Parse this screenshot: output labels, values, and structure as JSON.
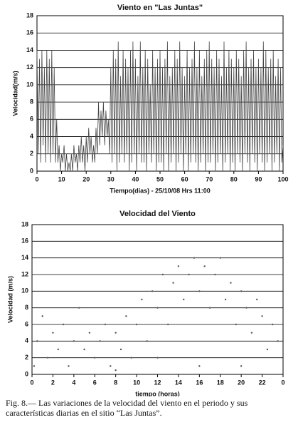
{
  "chart_data": [
    {
      "type": "line",
      "title": "Viento en \"Las Juntas\"",
      "xlabel": "Tiempo(dias) - 25/10/08 Hrs 11:00",
      "ylabel": "Velocidad(m/s)",
      "color": "#444444",
      "grid": true,
      "xlim": [
        0,
        100
      ],
      "ylim": [
        0,
        18
      ],
      "xticks": [
        0,
        10,
        20,
        30,
        40,
        50,
        60,
        70,
        80,
        90,
        100
      ],
      "yticks": [
        0,
        2,
        4,
        6,
        8,
        10,
        12,
        14,
        16,
        18
      ],
      "x": [
        0,
        0.5,
        1,
        1.5,
        2,
        2.5,
        3,
        3.5,
        4,
        4.5,
        5,
        5.5,
        6,
        6.5,
        7,
        7.5,
        8,
        8.5,
        9,
        9.5,
        10,
        10.5,
        11,
        11.5,
        12,
        12.5,
        13,
        13.5,
        14,
        14.5,
        15,
        15.5,
        16,
        16.5,
        17,
        17.5,
        18,
        18.5,
        19,
        19.5,
        20,
        20.5,
        21,
        21.5,
        22,
        22.5,
        23,
        23.5,
        24,
        24.5,
        25,
        25.5,
        26,
        26.5,
        27,
        27.5,
        28,
        28.5,
        29,
        29.5,
        30,
        30.5,
        31,
        31.5,
        32,
        32.5,
        33,
        33.5,
        34,
        34.5,
        35,
        35.5,
        36,
        36.5,
        37,
        37.5,
        38,
        38.5,
        39,
        39.5,
        40,
        40.5,
        41,
        41.5,
        42,
        42.5,
        43,
        43.5,
        44,
        44.5,
        45,
        45.5,
        46,
        46.5,
        47,
        47.5,
        48,
        48.5,
        49,
        49.5,
        50,
        50.5,
        51,
        51.5,
        52,
        52.5,
        53,
        53.5,
        54,
        54.5,
        55,
        55.5,
        56,
        56.5,
        57,
        57.5,
        58,
        58.5,
        59,
        59.5,
        60,
        60.5,
        61,
        61.5,
        62,
        62.5,
        63,
        63.5,
        64,
        64.5,
        65,
        65.5,
        66,
        66.5,
        67,
        67.5,
        68,
        68.5,
        69,
        69.5,
        70,
        70.5,
        71,
        71.5,
        72,
        72.5,
        73,
        73.5,
        74,
        74.5,
        75,
        75.5,
        76,
        76.5,
        77,
        77.5,
        78,
        78.5,
        79,
        79.5,
        80,
        80.5,
        81,
        81.5,
        82,
        82.5,
        83,
        83.5,
        84,
        84.5,
        85,
        85.5,
        86,
        86.5,
        87,
        87.5,
        88,
        88.5,
        89,
        89.5,
        90,
        90.5,
        91,
        91.5,
        92,
        92.5,
        93,
        93.5,
        94,
        94.5,
        95,
        95.5,
        96,
        96.5,
        97,
        97.5,
        98,
        98.5,
        99,
        99.5,
        100
      ],
      "values": [
        14,
        2,
        13,
        1,
        14,
        3,
        12,
        1,
        14,
        2,
        13,
        1,
        14,
        2,
        12,
        1,
        6,
        1,
        3,
        0,
        2,
        1,
        3,
        0,
        2,
        0,
        1,
        0,
        2,
        0,
        3,
        1,
        2,
        0,
        3,
        1,
        4,
        1,
        3,
        0,
        4,
        1,
        5,
        2,
        4,
        1,
        3,
        1,
        5,
        2,
        8,
        3,
        7,
        4,
        8,
        3,
        7,
        4,
        6,
        2,
        12,
        1,
        14,
        2,
        13,
        0,
        15,
        1,
        11,
        2,
        14,
        1,
        13,
        2,
        12,
        0,
        14,
        1,
        15,
        2,
        13,
        0,
        11,
        2,
        15,
        1,
        12,
        1,
        14,
        0,
        13,
        2,
        10,
        1,
        14,
        2,
        12,
        0,
        13,
        1,
        14,
        1,
        12,
        0,
        13,
        2,
        15,
        0,
        11,
        1,
        12,
        2,
        14,
        0,
        13,
        1,
        15,
        2,
        12,
        0,
        11,
        2,
        14,
        0,
        12,
        1,
        13,
        2,
        15,
        1,
        12,
        0,
        14,
        1,
        11,
        2,
        13,
        0,
        14,
        1,
        15,
        1,
        13,
        2,
        12,
        0,
        14,
        1,
        13,
        2,
        11,
        0,
        15,
        1,
        12,
        2,
        14,
        0,
        13,
        1,
        12,
        0,
        14,
        2,
        13,
        1,
        11,
        0,
        14,
        2,
        15,
        1,
        12,
        0,
        13,
        2,
        14,
        1,
        12,
        0,
        13,
        2,
        12,
        1,
        15,
        0,
        14,
        1,
        12,
        2,
        13,
        0,
        14,
        1,
        11,
        2,
        13,
        0,
        12,
        1,
        3
      ]
    },
    {
      "type": "scatter",
      "title": "Velocidad del Viento",
      "xlabel": "tiempo (horas)",
      "ylabel": "Velocidad (m/s)",
      "color": "#555555",
      "grid": true,
      "xlim": [
        0,
        24
      ],
      "ylim": [
        0,
        18
      ],
      "xticks": [
        0,
        2,
        4,
        6,
        8,
        10,
        12,
        14,
        16,
        18,
        20,
        22,
        {
          "value": 24,
          "label": "0"
        }
      ],
      "yticks": [
        0,
        2,
        4,
        6,
        8,
        10,
        12,
        14,
        16,
        18
      ],
      "x": [
        0.5,
        1,
        1.5,
        2,
        2.5,
        3,
        3.5,
        4,
        4.5,
        5,
        5.5,
        6,
        6.5,
        7,
        7.5,
        8,
        8.5,
        9,
        9.5,
        10,
        10.5,
        11,
        11.5,
        12,
        12.5,
        13,
        13.5,
        14,
        14.5,
        15,
        15.5,
        16,
        16.5,
        17,
        17.5,
        18,
        18.5,
        19,
        19.5,
        20,
        20.5,
        21,
        21.5,
        22,
        22.5,
        23,
        23.5,
        0.2,
        12,
        16,
        20,
        8
      ],
      "values": [
        4,
        7,
        2,
        5,
        3,
        6,
        1,
        4,
        8,
        3,
        5,
        2,
        4,
        6,
        1,
        5,
        3,
        7,
        2,
        6,
        9,
        4,
        10,
        8,
        12,
        6,
        11,
        13,
        9,
        12,
        14,
        10,
        13,
        8,
        12,
        14,
        9,
        11,
        6,
        10,
        8,
        5,
        9,
        7,
        3,
        6,
        4,
        1,
        2,
        1,
        1,
        0.5
      ]
    }
  ],
  "caption": "Fig. 8.— Las variaciones de la velocidad del viento en el periodo y sus características diarias en el sitio “Las Juntas”."
}
